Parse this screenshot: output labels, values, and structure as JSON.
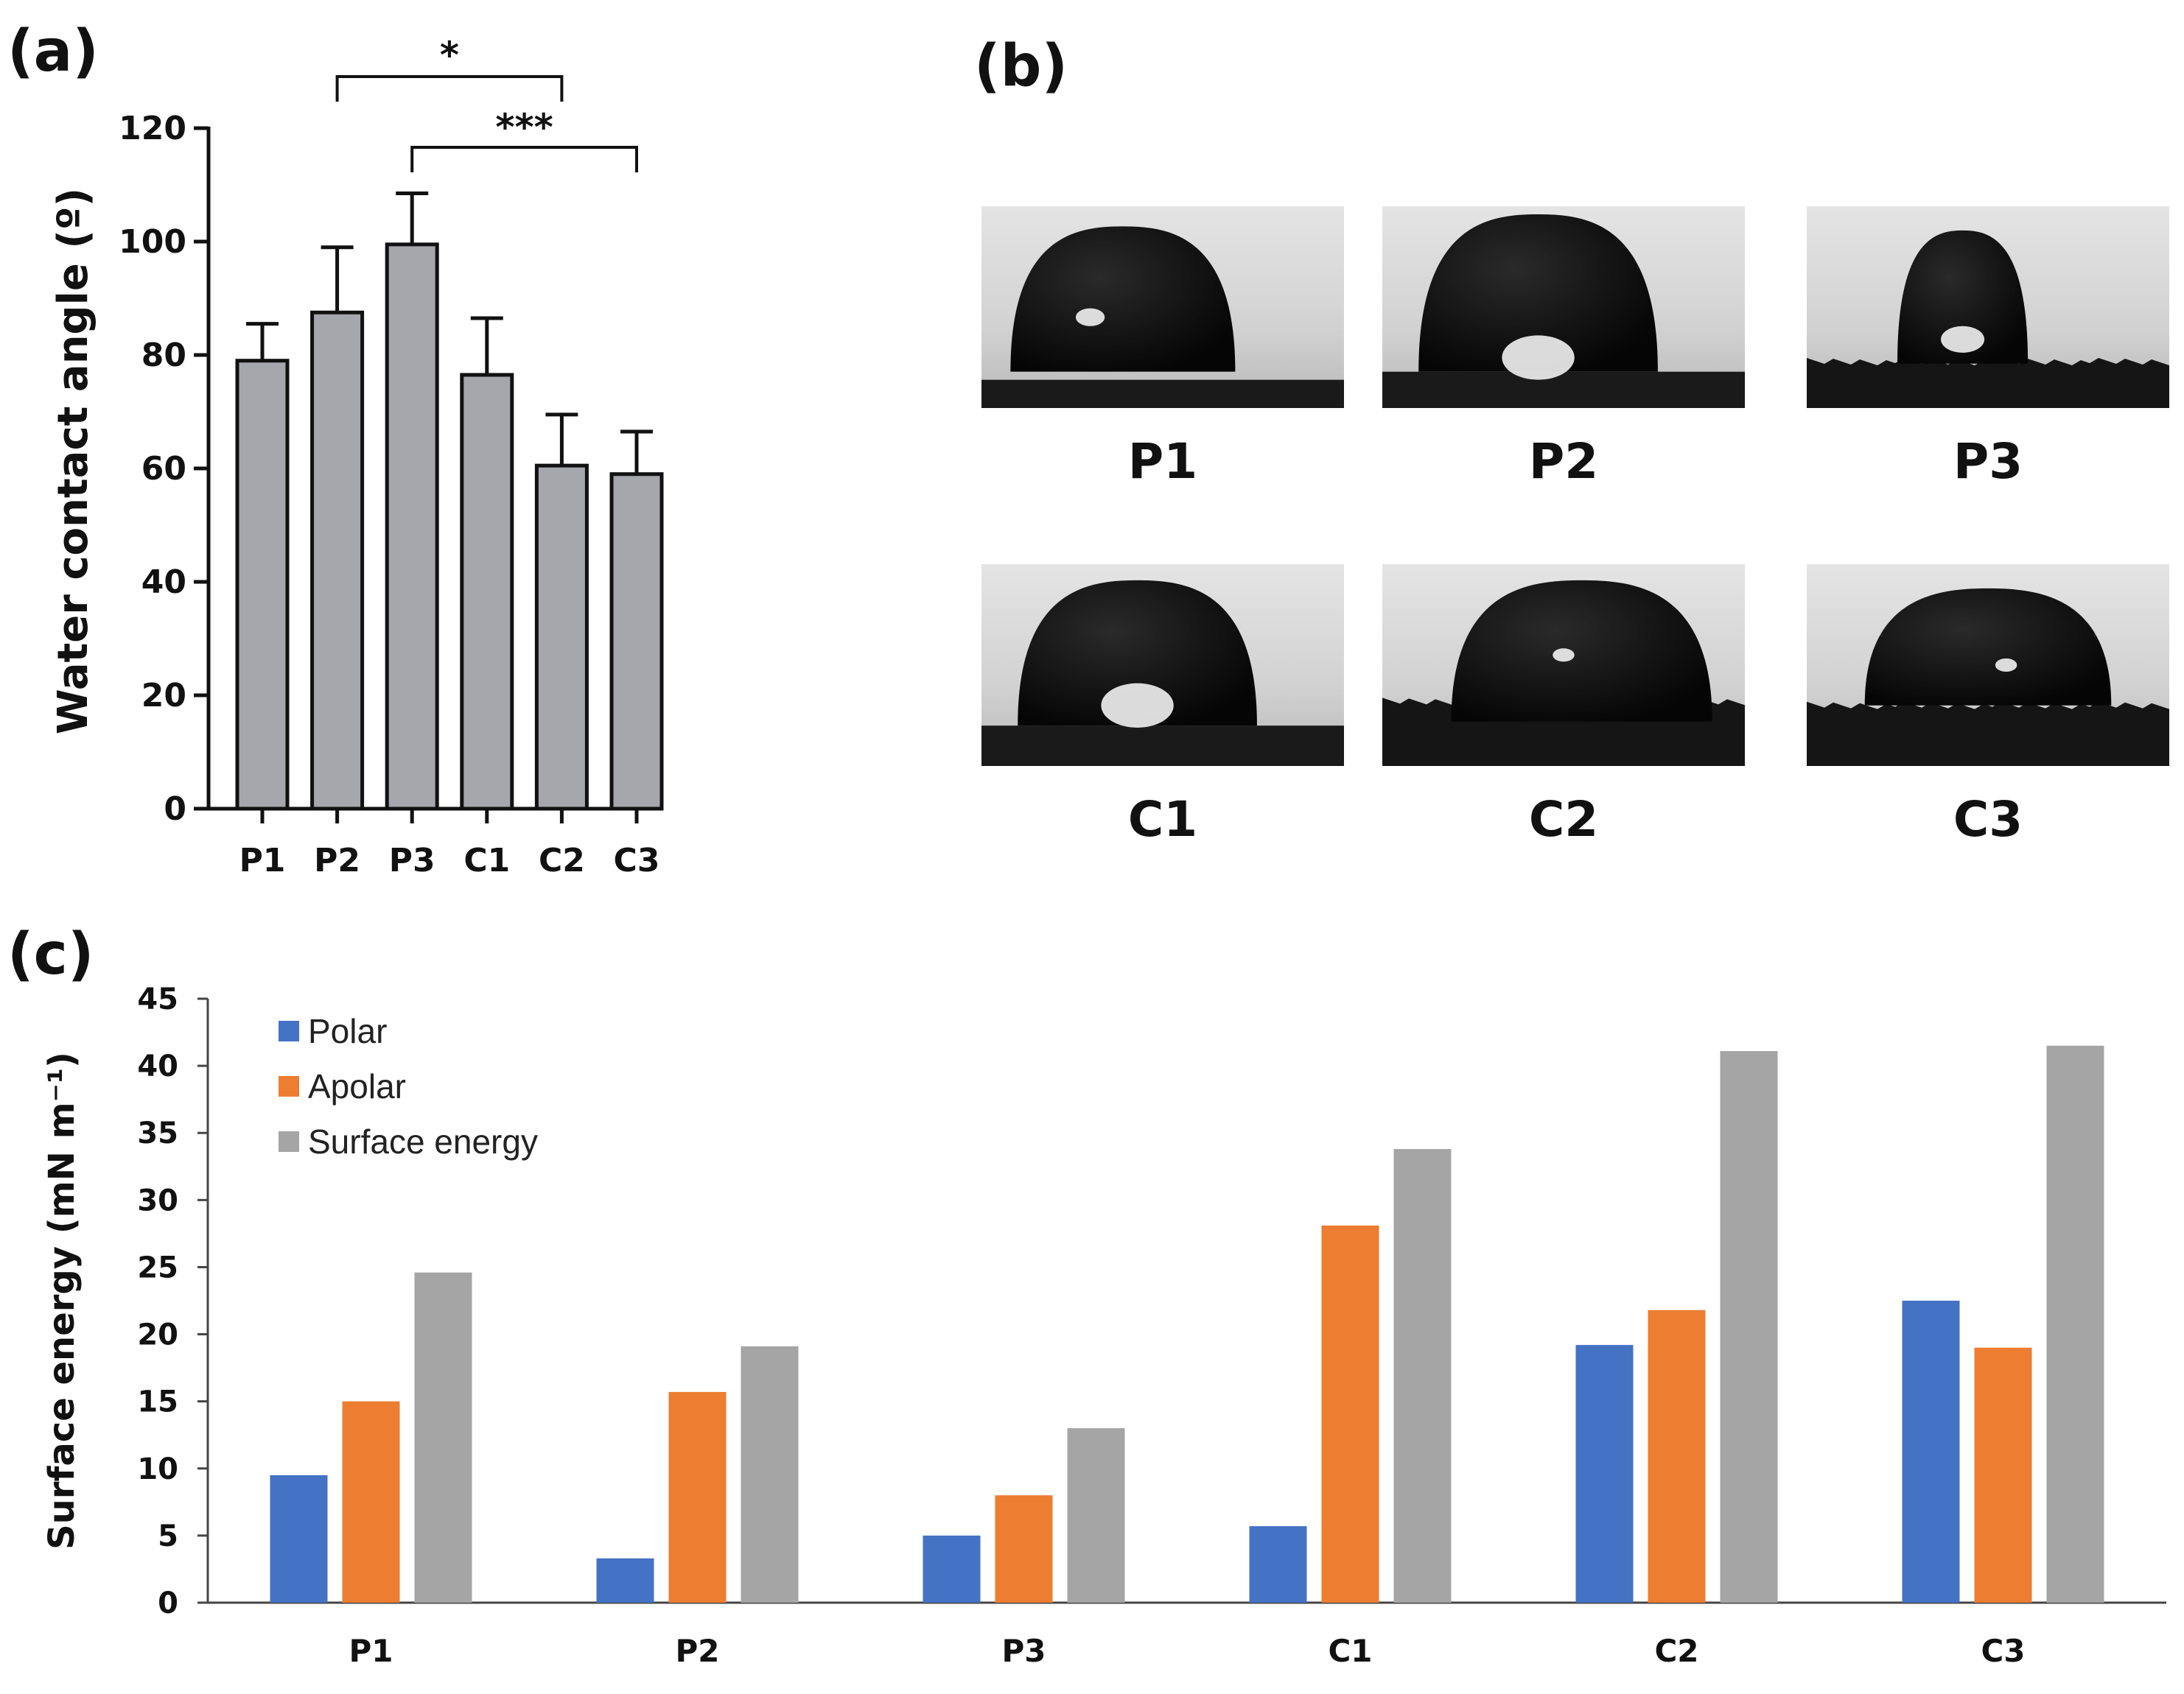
{
  "panels": {
    "a": "(a)",
    "b": "(b)",
    "c": "(c)"
  },
  "chart_data": [
    {
      "id": "a",
      "type": "bar",
      "title": "",
      "ylabel": "Water contact angle (º)",
      "xlabel": "",
      "categories": [
        "P1",
        "P2",
        "P3",
        "C1",
        "C2",
        "C3"
      ],
      "values": [
        79,
        87.5,
        99.5,
        76.5,
        60.5,
        59
      ],
      "errors": [
        6.5,
        11.5,
        9,
        10,
        9,
        7.5
      ],
      "ylim": [
        0,
        120
      ],
      "yticks": [
        "0",
        "20",
        "40",
        "60",
        "80",
        "100",
        "120"
      ],
      "bar_color": "#a6a6ad",
      "significance": [
        {
          "from": "P2",
          "to": "C2",
          "label": "*"
        },
        {
          "from": "P3",
          "to": "C3",
          "label": "***"
        }
      ]
    },
    {
      "id": "c",
      "type": "bar",
      "title": "",
      "ylabel": "Surface energy (mN m⁻¹)",
      "xlabel": "",
      "categories": [
        "P1",
        "P2",
        "P3",
        "C1",
        "C2",
        "C3"
      ],
      "ylim": [
        0,
        45
      ],
      "yticks": [
        "0",
        "5",
        "10",
        "15",
        "20",
        "25",
        "30",
        "35",
        "40",
        "45"
      ],
      "legend_position": "top-left",
      "series": [
        {
          "name": "Polar",
          "color": "#4472c4",
          "values": [
            9.5,
            3.3,
            5.0,
            5.7,
            19.2,
            22.5
          ]
        },
        {
          "name": "Apolar",
          "color": "#ed7d31",
          "values": [
            15.0,
            15.7,
            8.0,
            28.1,
            21.8,
            19.0
          ]
        },
        {
          "name": "Surface energy",
          "color": "#a5a5a5",
          "values": [
            24.6,
            19.1,
            13.0,
            33.8,
            41.1,
            41.5
          ]
        }
      ]
    }
  ],
  "droplet_images": [
    {
      "label": "P1",
      "icon": "water-droplet-photo"
    },
    {
      "label": "P2",
      "icon": "water-droplet-photo"
    },
    {
      "label": "P3",
      "icon": "water-droplet-photo"
    },
    {
      "label": "C1",
      "icon": "water-droplet-photo"
    },
    {
      "label": "C2",
      "icon": "water-droplet-photo"
    },
    {
      "label": "C3",
      "icon": "water-droplet-photo"
    }
  ]
}
